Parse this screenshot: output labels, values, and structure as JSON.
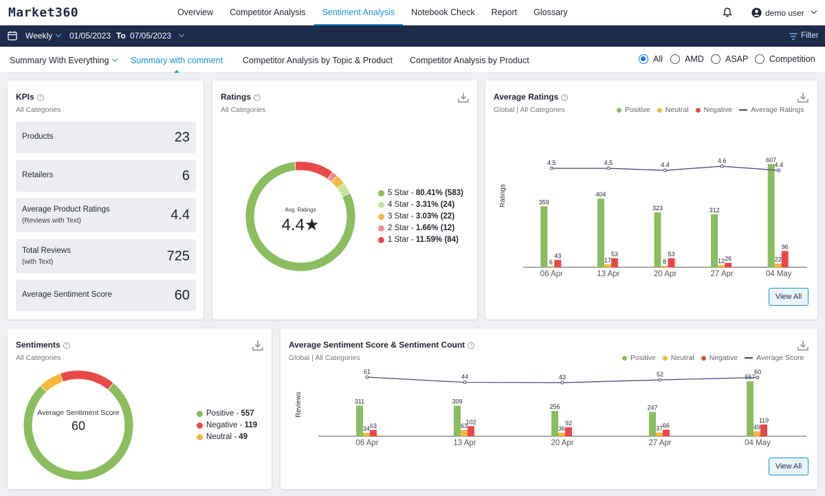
{
  "app": {
    "logo": "Market360"
  },
  "nav": {
    "items": [
      "Overview",
      "Competitor Analysis",
      "Sentiment Analysis",
      "Notebook Check",
      "Report",
      "Glossary"
    ],
    "active": "Sentiment Analysis",
    "user": "demo user"
  },
  "filterbar": {
    "period": "Weekly",
    "from": "01/05/2023",
    "to_label": "To",
    "to": "07/05/2023",
    "filter_label": "Filter"
  },
  "subtabs": {
    "items": [
      "Summary With Everything",
      "Summary with comment",
      "Competitor Analysis by Topic & Product",
      "Competitor Analysis by Product"
    ],
    "active": "Summary with comment",
    "radios": [
      "All",
      "AMD",
      "ASAP",
      "Competition"
    ],
    "selected_radio": "All"
  },
  "kpis": {
    "title": "KPIs",
    "subtitle": "All Categories",
    "items": [
      {
        "label": "Products",
        "sub": "",
        "value": "23"
      },
      {
        "label": "Retailers",
        "sub": "",
        "value": "6"
      },
      {
        "label": "Average Product Ratings",
        "sub": "(Reviews with Text)",
        "value": "4.4"
      },
      {
        "label": "Total Reviews",
        "sub": "(with Text)",
        "value": "725"
      },
      {
        "label": "Average Sentiment Score",
        "sub": "",
        "value": "60"
      }
    ]
  },
  "ratings": {
    "title": "Ratings",
    "subtitle": "All Categories",
    "center_label": "Avg. Ratings",
    "center_value": "4.4★",
    "items": [
      {
        "label": "5 Star",
        "stat": "80.41% (583)",
        "pct": 80.41,
        "color": "#8bbd5e"
      },
      {
        "label": "4 Star",
        "stat": "3.31% (24)",
        "pct": 3.31,
        "color": "#c7e59b"
      },
      {
        "label": "3 Star",
        "stat": "3.03% (22)",
        "pct": 3.03,
        "color": "#f5b93f"
      },
      {
        "label": "2 Star",
        "stat": "1.66% (12)",
        "pct": 1.66,
        "color": "#ef8f8f"
      },
      {
        "label": "1 Star",
        "stat": "11.59% (84)",
        "pct": 11.59,
        "color": "#ea4848"
      }
    ]
  },
  "avg_ratings": {
    "title": "Average Ratings",
    "subtitle": "Global | All Categories",
    "legend": [
      "Positive",
      "Neutral",
      "Negative",
      "Average Ratings"
    ],
    "y_label": "Ratings",
    "view_all": "View All"
  },
  "sentiments": {
    "title": "Sentiments",
    "subtitle": "All Categories",
    "center_label": "Average Sentiment Score",
    "center_value": "60",
    "items": [
      {
        "label": "Positive",
        "value": 557,
        "display": "557",
        "color": "#8bbd5e"
      },
      {
        "label": "Negative",
        "value": 119,
        "display": "119",
        "color": "#ea4848"
      },
      {
        "label": "Neutral",
        "value": 49,
        "display": "49",
        "color": "#f5b93f"
      }
    ]
  },
  "avg_sentiment": {
    "title": "Average Sentiment Score & Sentiment Count",
    "subtitle": "Global | All Categories",
    "legend": [
      "Positive",
      "Neutral",
      "Negative",
      "Average Score"
    ],
    "y_label": "Reviews",
    "view_all": "View All"
  },
  "colors": {
    "positive": "#8bbd5e",
    "neutral": "#f5b93f",
    "negative": "#ea4848",
    "line": "#3b3f7a",
    "accent": "#1a8fd6"
  },
  "chart_data": [
    {
      "type": "bar",
      "title": "Average Ratings",
      "categories": [
        "06 Apr",
        "13 Apr",
        "20 Apr",
        "27 Apr",
        "04 May"
      ],
      "series": [
        {
          "name": "Positive",
          "values": [
            359,
            404,
            323,
            312,
            607
          ]
        },
        {
          "name": "Neutral",
          "values": [
            6,
            17,
            8,
            12,
            22
          ]
        },
        {
          "name": "Negative",
          "values": [
            43,
            53,
            53,
            26,
            96
          ]
        },
        {
          "name": "Average Ratings",
          "type": "line",
          "values": [
            4.5,
            4.5,
            4.4,
            4.6,
            4.4
          ]
        }
      ],
      "ylabel": "Ratings",
      "legend": "top-right"
    },
    {
      "type": "bar",
      "title": "Average Sentiment Score & Sentiment Count",
      "categories": [
        "06 Apr",
        "13 Apr",
        "20 Apr",
        "27 Apr",
        "04 May"
      ],
      "series": [
        {
          "name": "Positive",
          "values": [
            311,
            309,
            256,
            247,
            557
          ]
        },
        {
          "name": "Neutral",
          "values": [
            34,
            63,
            36,
            37,
            49
          ]
        },
        {
          "name": "Negative",
          "values": [
            63,
            102,
            92,
            66,
            119
          ]
        },
        {
          "name": "Average Score",
          "type": "line",
          "values": [
            61,
            44,
            43,
            52,
            60
          ]
        }
      ],
      "ylabel": "Reviews",
      "legend": "top-right"
    }
  ]
}
